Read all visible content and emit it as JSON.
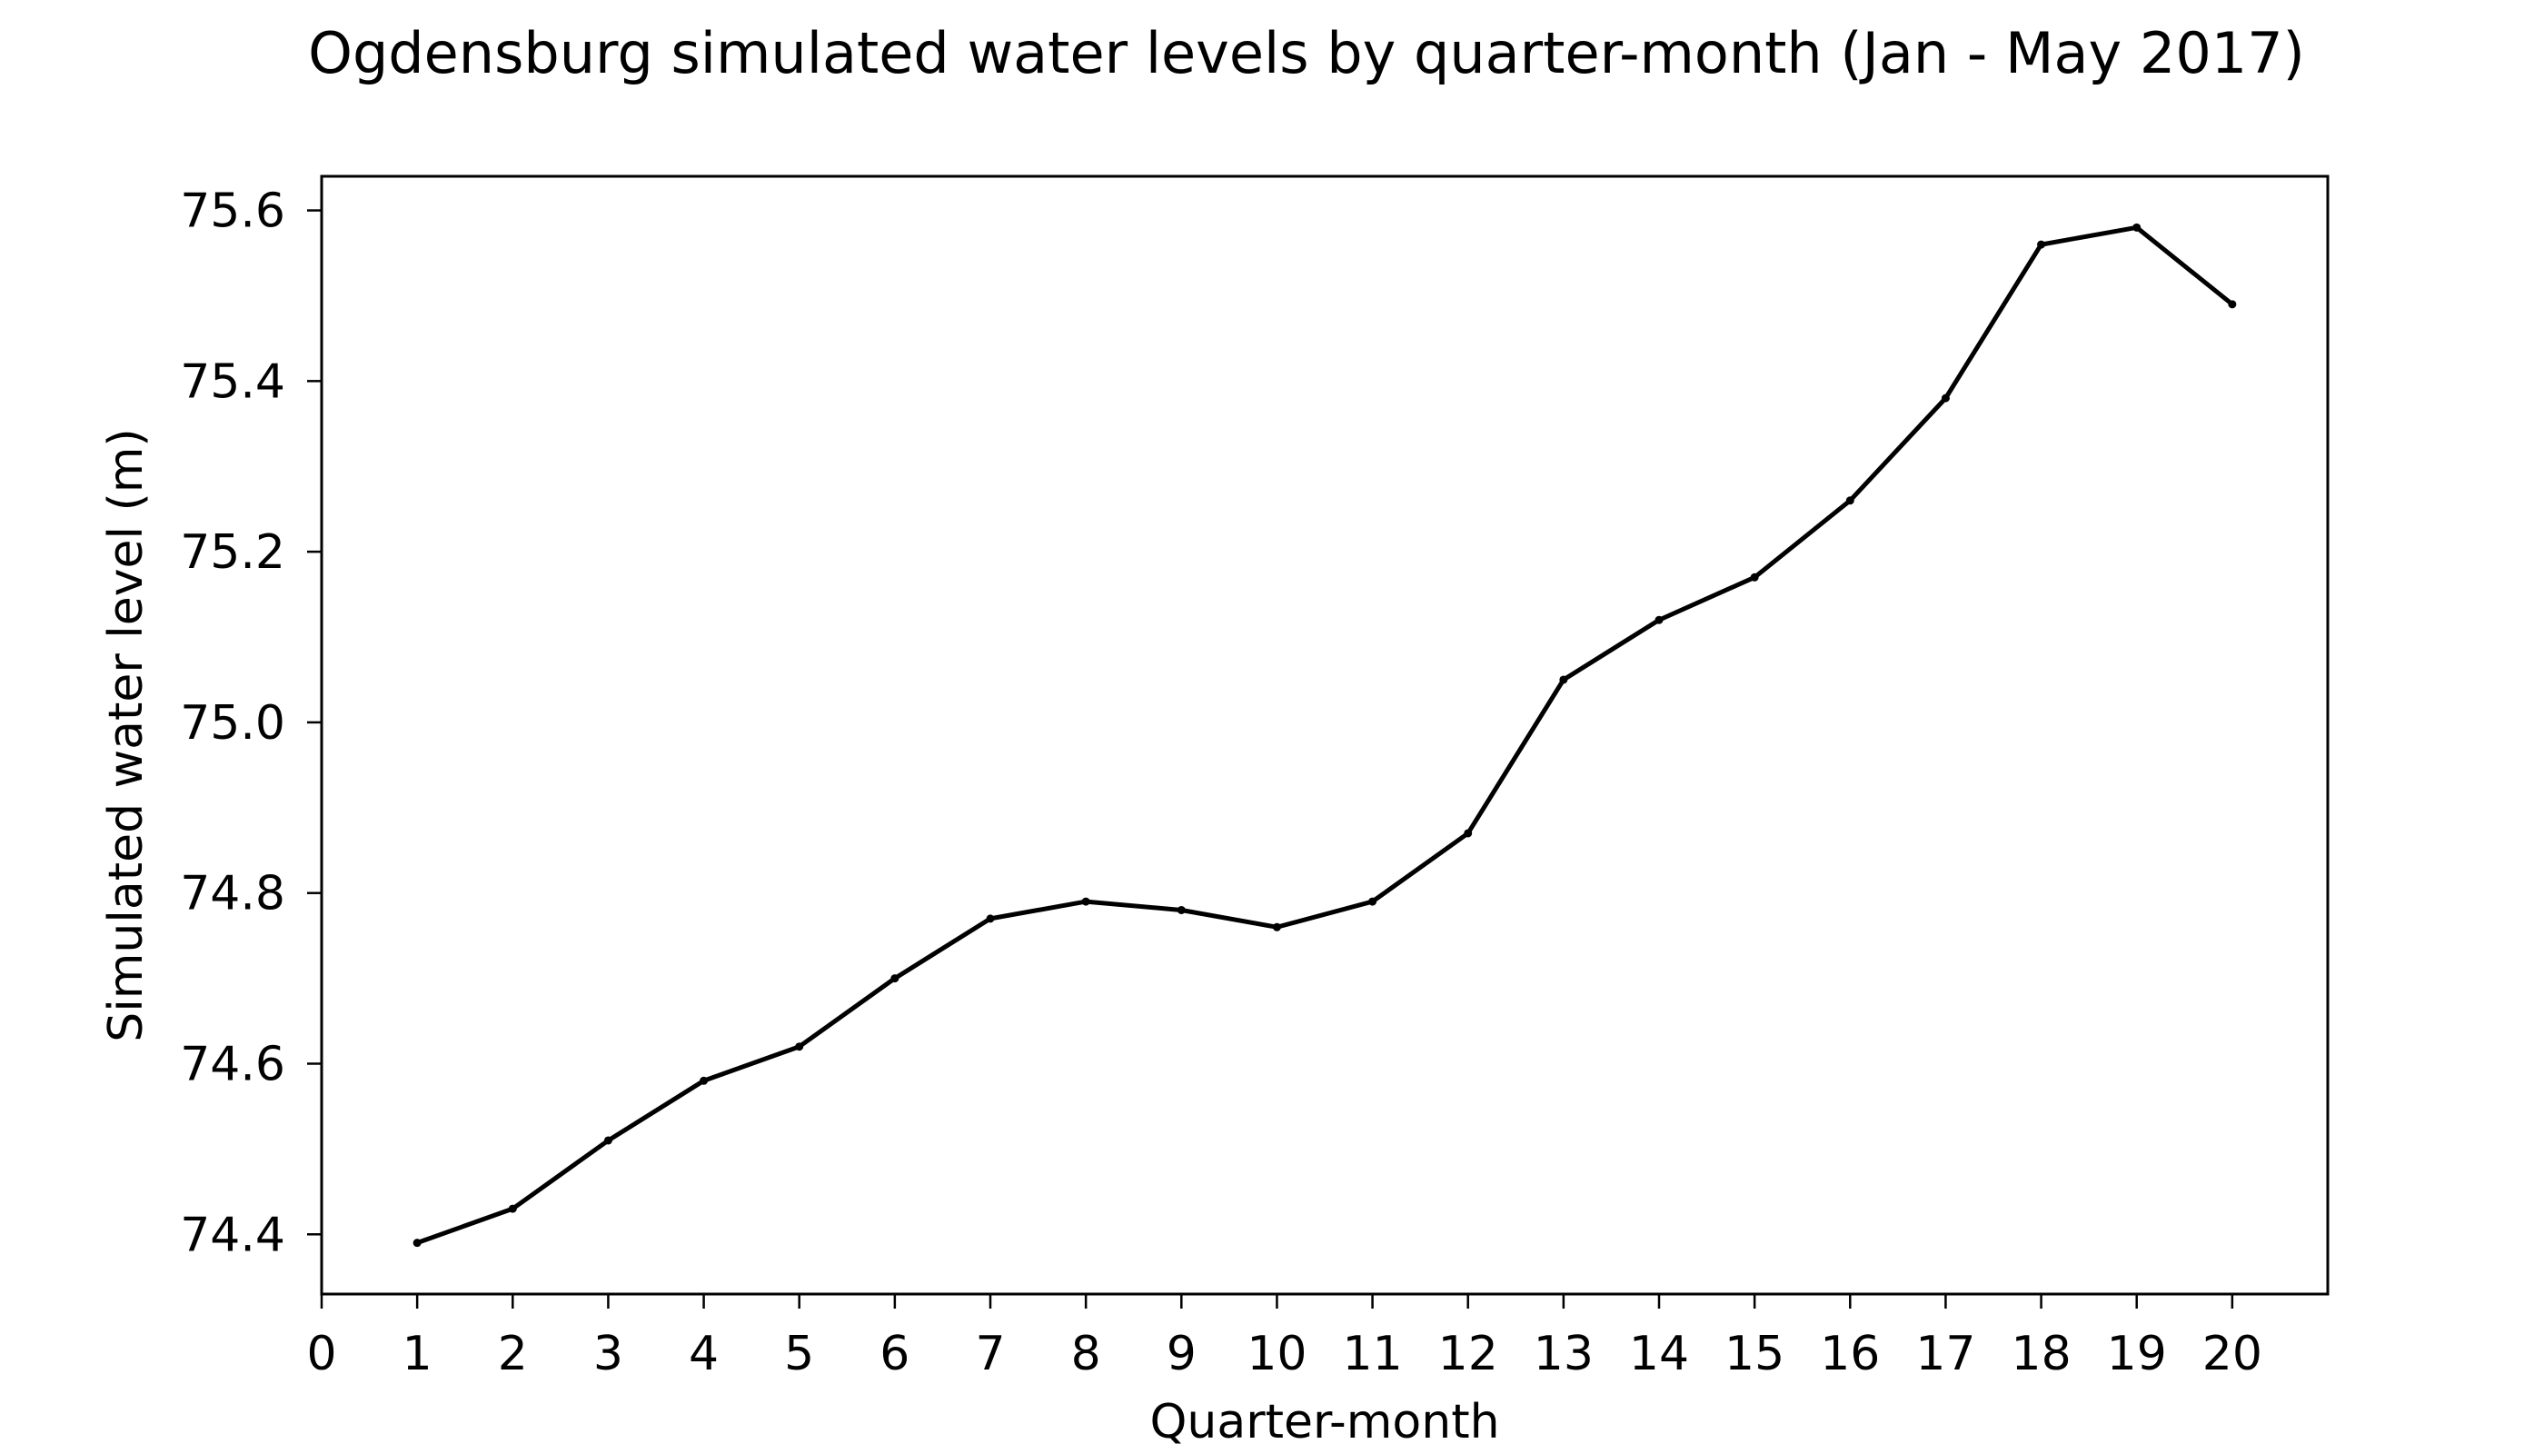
{
  "chart_data": {
    "type": "line",
    "title": "Ogdensburg simulated water levels by quarter-month (Jan - May 2017)",
    "xlabel": "Quarter-month",
    "ylabel": "Simulated water level (m)",
    "x": [
      1,
      2,
      3,
      4,
      5,
      6,
      7,
      8,
      9,
      10,
      11,
      12,
      13,
      14,
      15,
      16,
      17,
      18,
      19,
      20
    ],
    "series": [
      {
        "values": [
          74.39,
          74.43,
          74.51,
          74.58,
          74.62,
          74.7,
          74.77,
          74.79,
          74.78,
          74.76,
          74.79,
          74.87,
          75.05,
          75.12,
          75.17,
          75.26,
          75.38,
          75.56,
          75.58,
          75.49
        ],
        "color": "#000000",
        "marker": "point"
      }
    ],
    "xlim": [
      0,
      21
    ],
    "ylim": [
      74.33,
      75.64
    ],
    "xticks": [
      "0",
      "1",
      "2",
      "3",
      "4",
      "5",
      "6",
      "7",
      "8",
      "9",
      "10",
      "11",
      "12",
      "13",
      "14",
      "15",
      "16",
      "17",
      "18",
      "19",
      "20"
    ],
    "yticks": [
      "74.4",
      "74.6",
      "74.8",
      "75.0",
      "75.2",
      "75.4",
      "75.6"
    ],
    "grid": false,
    "legend": "none"
  }
}
